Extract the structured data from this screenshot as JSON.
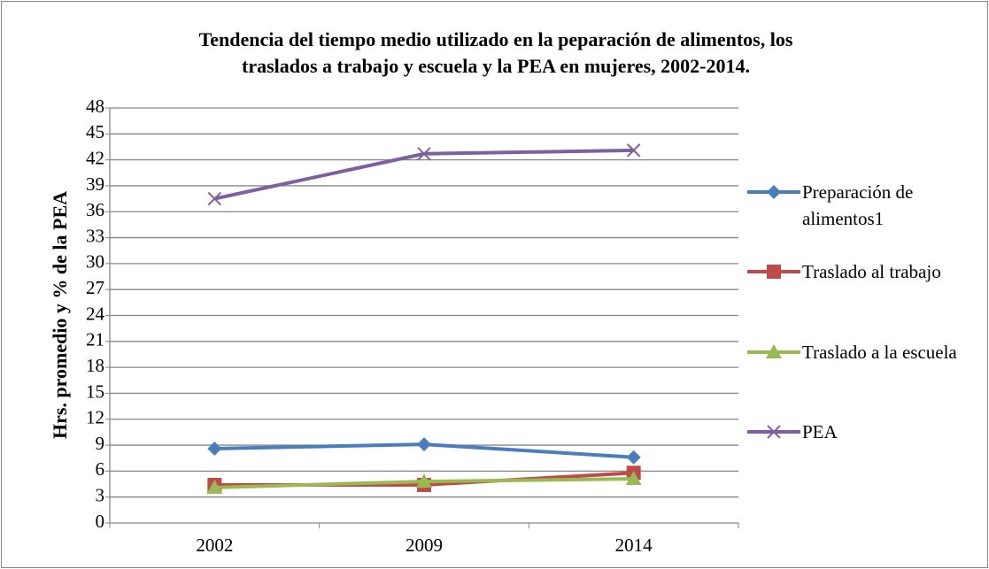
{
  "chart_data": {
    "type": "line",
    "title": [
      "Tendencia del tiempo medio utilizado en la peparación de alimentos, los",
      "traslados a trabajo y escuela y la PEA en mujeres, 2002-2014."
    ],
    "y_label": "Hrs. promedio y % de la PEA",
    "categories": [
      "2002",
      "2009",
      "2014"
    ],
    "series": [
      {
        "name": "Preparación de alimentos1",
        "color": "#4a7ebb",
        "marker": "diamond",
        "values": [
          8.6,
          9.1,
          7.6
        ]
      },
      {
        "name": "Traslado al trabajo",
        "color": "#be4b48",
        "marker": "square",
        "values": [
          4.4,
          4.4,
          5.8
        ]
      },
      {
        "name": "Traslado a la escuela",
        "color": "#98b954",
        "marker": "triangle",
        "values": [
          4.1,
          4.8,
          5.1
        ]
      },
      {
        "name": "PEA",
        "color": "#7d60a0",
        "marker": "x",
        "values": [
          37.5,
          42.7,
          43.1
        ]
      }
    ],
    "ylim": [
      0,
      48
    ],
    "yticks": [
      0,
      3,
      6,
      9,
      12,
      15,
      18,
      21,
      24,
      27,
      30,
      33,
      36,
      39,
      42,
      45,
      48
    ],
    "grid": true,
    "legend": "right"
  }
}
